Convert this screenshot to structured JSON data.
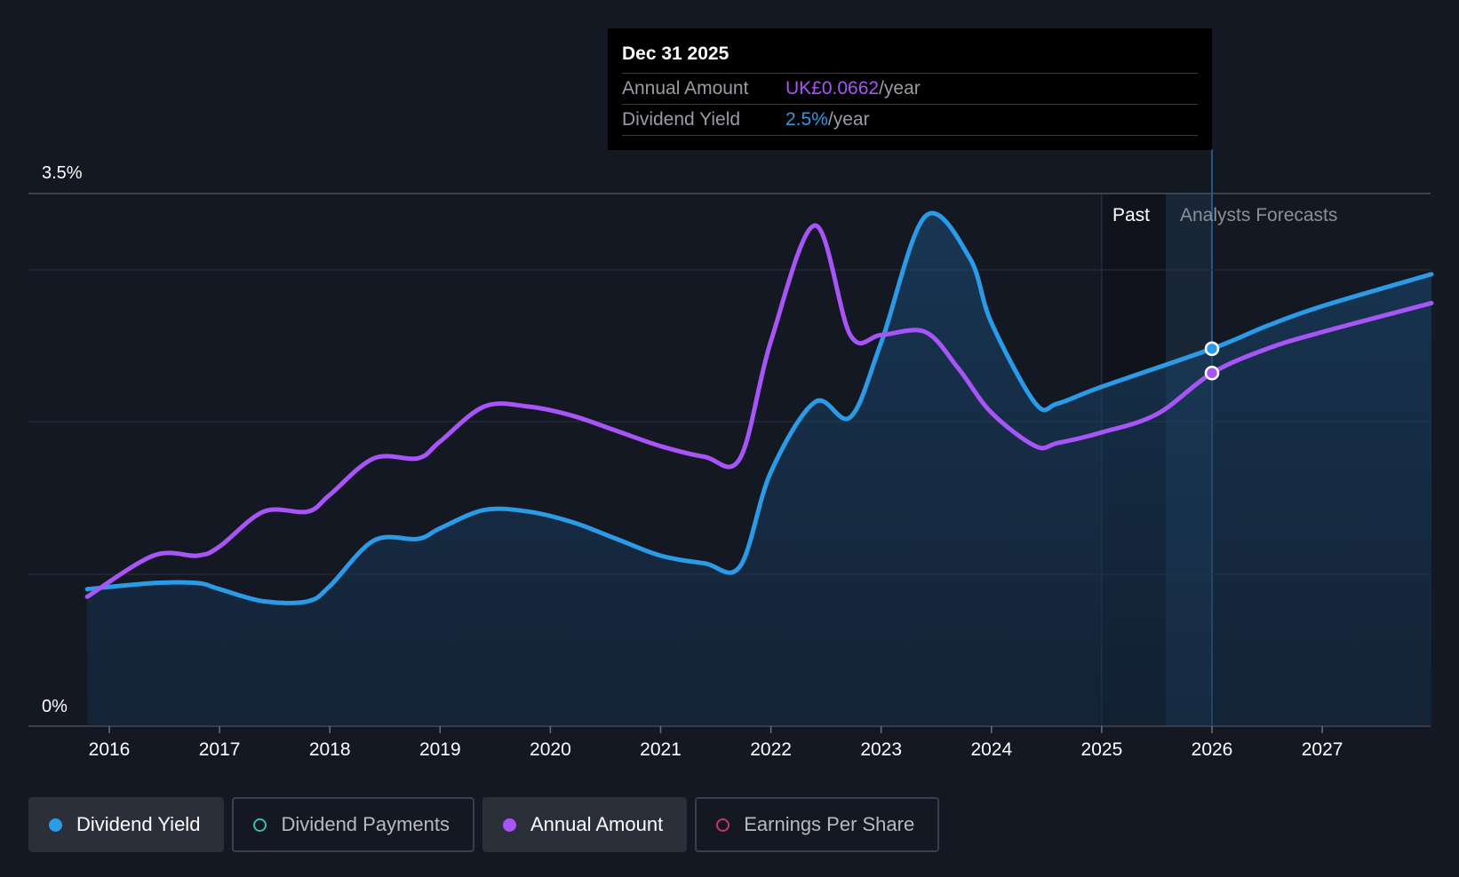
{
  "tooltip": {
    "date": "Dec 31 2025",
    "row1_label": "Annual Amount",
    "row1_value": "UK£0.0662",
    "row1_suffix": "/year",
    "row2_label": "Dividend Yield",
    "row2_value": "2.5%",
    "row2_suffix": "/year"
  },
  "legend": [
    {
      "label": "Dividend Yield",
      "active": true,
      "color": "#2b9be8",
      "filled": true
    },
    {
      "label": "Dividend Payments",
      "active": false,
      "color": "#38bdb0",
      "filled": false
    },
    {
      "label": "Annual Amount",
      "active": true,
      "color": "#a855f7",
      "filled": true
    },
    {
      "label": "Earnings Per Share",
      "active": false,
      "color": "#c2356f",
      "filled": false
    }
  ],
  "chart_data": {
    "type": "line",
    "y_axis_labels": [
      "3.5%",
      "0%"
    ],
    "ylim": [
      0,
      3.5
    ],
    "grid": true,
    "x_tick_labels": [
      "2016",
      "2017",
      "2018",
      "2019",
      "2020",
      "2021",
      "2022",
      "2023",
      "2024",
      "2025",
      "2026",
      "2027"
    ],
    "xlim": [
      2015.2,
      2027.99
    ],
    "past_label": "Past",
    "forecast_label": "Analysts Forecasts",
    "past_region": [
      2025.0,
      2025.58
    ],
    "forecast_start": 2026.0,
    "series": [
      {
        "name": "Dividend Yield",
        "color": "#2b9be8",
        "filled": true,
        "points": [
          [
            2015.8,
            0.9
          ],
          [
            2016.4,
            0.94
          ],
          [
            2016.8,
            0.94
          ],
          [
            2017.0,
            0.9
          ],
          [
            2017.4,
            0.82
          ],
          [
            2017.8,
            0.82
          ],
          [
            2018.0,
            0.92
          ],
          [
            2018.4,
            1.22
          ],
          [
            2018.8,
            1.23
          ],
          [
            2019.0,
            1.3
          ],
          [
            2019.4,
            1.42
          ],
          [
            2019.8,
            1.41
          ],
          [
            2020.2,
            1.34
          ],
          [
            2020.6,
            1.23
          ],
          [
            2021.0,
            1.12
          ],
          [
            2021.4,
            1.07
          ],
          [
            2021.72,
            1.05
          ],
          [
            2022.0,
            1.67
          ],
          [
            2022.4,
            2.13
          ],
          [
            2022.72,
            2.03
          ],
          [
            2023.0,
            2.52
          ],
          [
            2023.4,
            3.35
          ],
          [
            2023.8,
            3.08
          ],
          [
            2024.0,
            2.65
          ],
          [
            2024.4,
            2.12
          ],
          [
            2024.6,
            2.12
          ],
          [
            2025.0,
            2.23
          ],
          [
            2026.0,
            2.48
          ],
          [
            2026.5,
            2.63
          ],
          [
            2027.0,
            2.76
          ],
          [
            2027.99,
            2.97
          ]
        ]
      },
      {
        "name": "Annual Amount",
        "color": "#a855f7",
        "filled": false,
        "points": [
          [
            2015.8,
            0.85
          ],
          [
            2016.4,
            1.12
          ],
          [
            2016.8,
            1.12
          ],
          [
            2017.0,
            1.18
          ],
          [
            2017.4,
            1.41
          ],
          [
            2017.8,
            1.41
          ],
          [
            2018.0,
            1.52
          ],
          [
            2018.4,
            1.76
          ],
          [
            2018.8,
            1.76
          ],
          [
            2019.0,
            1.87
          ],
          [
            2019.4,
            2.1
          ],
          [
            2019.8,
            2.1
          ],
          [
            2020.2,
            2.04
          ],
          [
            2020.6,
            1.94
          ],
          [
            2021.0,
            1.84
          ],
          [
            2021.4,
            1.77
          ],
          [
            2021.72,
            1.76
          ],
          [
            2022.0,
            2.53
          ],
          [
            2022.4,
            3.29
          ],
          [
            2022.72,
            2.57
          ],
          [
            2023.0,
            2.57
          ],
          [
            2023.4,
            2.59
          ],
          [
            2023.7,
            2.35
          ],
          [
            2024.0,
            2.06
          ],
          [
            2024.4,
            1.84
          ],
          [
            2024.6,
            1.86
          ],
          [
            2025.0,
            1.93
          ],
          [
            2025.5,
            2.05
          ],
          [
            2026.0,
            2.32
          ],
          [
            2026.5,
            2.48
          ],
          [
            2027.0,
            2.59
          ],
          [
            2027.99,
            2.78
          ]
        ]
      }
    ],
    "highlight_x": 2026.0
  }
}
